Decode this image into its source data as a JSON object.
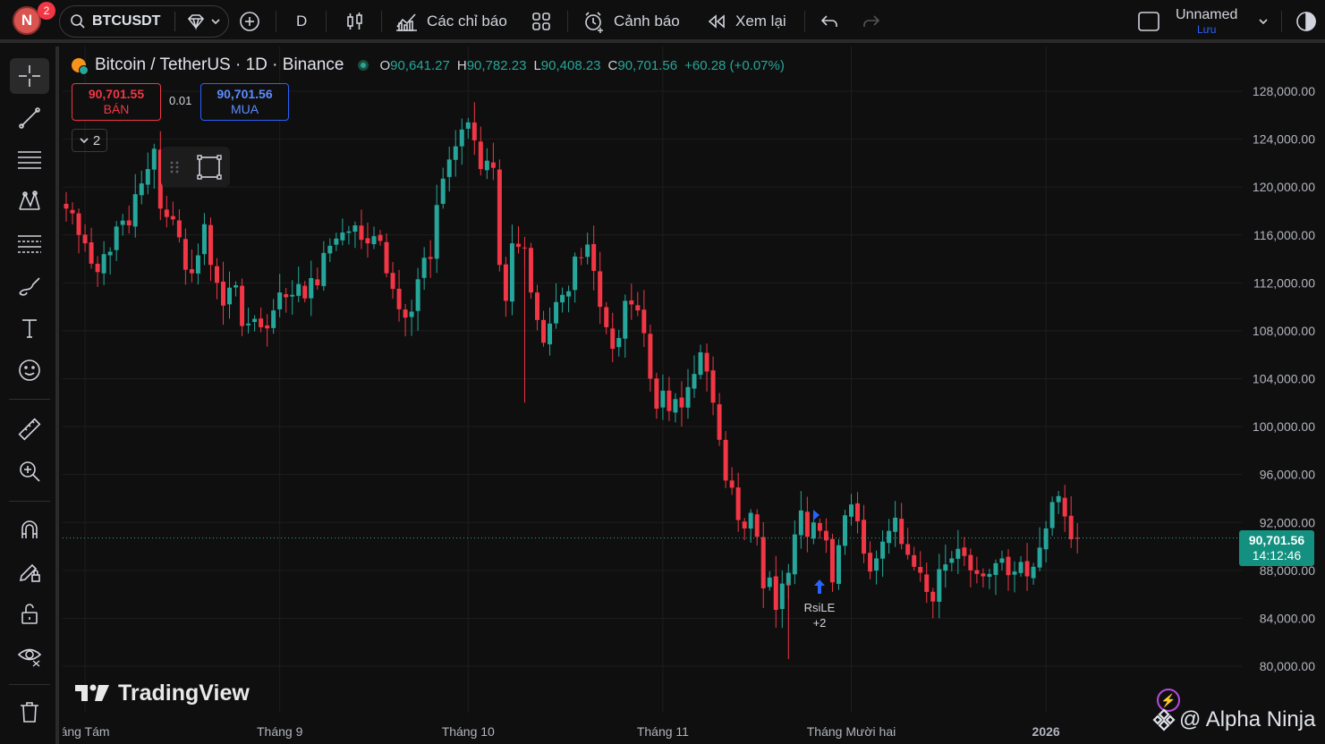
{
  "topbar": {
    "avatar_letter": "N",
    "avatar_badge": "2",
    "symbol": "BTCUSDT",
    "interval": "D",
    "indicators_label": "Các chỉ báo",
    "alerts_label": "Cảnh báo",
    "replay_label": "Xem lại",
    "layout_name": "Unnamed",
    "layout_status": "Lưu"
  },
  "legend": {
    "title": "Bitcoin / TetherUS · 1D · Binance",
    "open_key": "O",
    "open": "90,641.27",
    "high_key": "H",
    "high": "90,782.23",
    "low_key": "L",
    "low": "90,408.23",
    "close_key": "C",
    "close": "90,701.56",
    "change": "+60.28 (+0.07%)"
  },
  "trade": {
    "sell_price": "90,701.55",
    "sell_label": "BÁN",
    "qty": "0.01",
    "buy_price": "90,701.56",
    "buy_label": "MUA",
    "collapse_count": "2"
  },
  "last_price": {
    "price": "90,701.56",
    "countdown": "14:12:46"
  },
  "signal": {
    "name": "RsiLE",
    "count": "+2"
  },
  "branding": {
    "logo_text": "TradingView",
    "watermark": "@ Alpha Ninja"
  },
  "colors": {
    "up": "#26a69a",
    "down": "#f23645",
    "background": "#0f0f0f",
    "grid": "#1e1e1e",
    "buy": "#2962ff"
  },
  "chart_data": {
    "type": "candlestick",
    "symbol": "BTCUSDT",
    "interval": "1D",
    "y_ticks": [
      "128,000.00",
      "124,000.00",
      "120,000.00",
      "116,000.00",
      "112,000.00",
      "108,000.00",
      "104,000.00",
      "100,000.00",
      "96,000.00",
      "92,000.00",
      "88,000.00",
      "84,000.00",
      "80,000.00"
    ],
    "ylim": [
      78500,
      131000
    ],
    "x_ticks": [
      {
        "label": "áng Tám",
        "date": "2025-08-01"
      },
      {
        "label": "Tháng 9",
        "date": "2025-09-01"
      },
      {
        "label": "Tháng 10",
        "date": "2025-10-01"
      },
      {
        "label": "Tháng 11",
        "date": "2025-11-01"
      },
      {
        "label": "Tháng Mười hai",
        "date": "2025-12-01"
      },
      {
        "label": "2026",
        "date": "2026-01-01"
      }
    ],
    "first_date": "2025-07-29",
    "close_series": [
      118200,
      117800,
      116000,
      115300,
      113600,
      112900,
      114400,
      114600,
      116700,
      117200,
      116800,
      119400,
      120300,
      121500,
      123200,
      118200,
      117500,
      117300,
      115800,
      113100,
      112800,
      114300,
      116900,
      113500,
      112000,
      110100,
      111600,
      111800,
      108400,
      108600,
      109000,
      108300,
      108200,
      109700,
      111200,
      110800,
      111000,
      111900,
      110700,
      112400,
      111800,
      114500,
      115100,
      115700,
      116200,
      116300,
      116800,
      115600,
      115300,
      115900,
      115500,
      112800,
      111500,
      109800,
      109100,
      109600,
      112300,
      114100,
      114000,
      118500,
      120700,
      122300,
      123400,
      124800,
      125400,
      123900,
      121500,
      122200,
      121600,
      113500,
      110500,
      115300,
      115000,
      114900,
      111200,
      108900,
      107000,
      108600,
      110400,
      111000,
      111300,
      114200,
      114100,
      115200,
      113000,
      110000,
      108300,
      106500,
      107400,
      110500,
      110200,
      109700,
      107800,
      104000,
      101500,
      103000,
      101300,
      102300,
      101600,
      103300,
      104400,
      106200,
      104600,
      102000,
      98900,
      95500,
      94900,
      92200,
      91500,
      92800,
      90800,
      86500,
      87400,
      84700,
      86900,
      87800,
      91000,
      93000,
      90800,
      92000,
      91300,
      90500,
      87000,
      90100,
      92600,
      93500,
      92100,
      89400,
      87900,
      89000,
      90400,
      91300,
      92400,
      90200,
      89300,
      88300,
      87800,
      86200,
      85400,
      88100,
      88500,
      89000,
      89800,
      89200,
      88000,
      87700,
      87500,
      87700,
      88600,
      89000,
      87600,
      87900,
      88700,
      87500,
      88300,
      89900,
      91500,
      93700,
      94200,
      92500,
      90600,
      90700
    ],
    "series": [
      {
        "name": "BTCUSDT",
        "last": 90701.56
      }
    ],
    "grid": true
  }
}
